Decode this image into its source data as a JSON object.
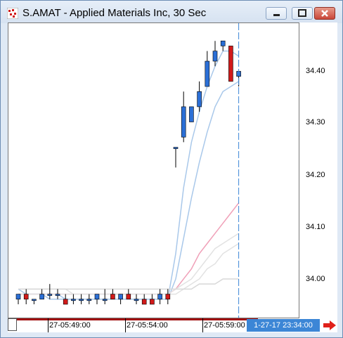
{
  "window": {
    "title": "S.AMAT - Applied Materials Inc, 30 Sec"
  },
  "price_axis": {
    "labels": [
      "34.40",
      "34.30",
      "34.20",
      "34.10",
      "34.00"
    ]
  },
  "time_axis": {
    "labels": [
      "27-05:49:00",
      "27-05:54:00",
      "27-05:59:00"
    ],
    "cursor_label": "1-27-17 23:34:00"
  },
  "colors": {
    "up": "#2b6fd6",
    "down": "#d11a1a",
    "cursor": "#3c86d6"
  },
  "chart_data": {
    "type": "candlestick",
    "y_range": [
      33.95,
      34.48
    ],
    "candles": [
      {
        "o": 33.96,
        "h": 33.97,
        "l": 33.95,
        "c": 33.97
      },
      {
        "o": 33.97,
        "h": 33.98,
        "l": 33.95,
        "c": 33.96
      },
      {
        "o": 33.96,
        "h": 33.96,
        "l": 33.95,
        "c": 33.96
      },
      {
        "o": 33.96,
        "h": 33.98,
        "l": 33.96,
        "c": 33.97
      },
      {
        "o": 33.97,
        "h": 33.99,
        "l": 33.96,
        "c": 33.97
      },
      {
        "o": 33.97,
        "h": 33.98,
        "l": 33.96,
        "c": 33.97
      },
      {
        "o": 33.96,
        "h": 33.97,
        "l": 33.95,
        "c": 33.95
      },
      {
        "o": 33.96,
        "h": 33.97,
        "l": 33.95,
        "c": 33.96
      },
      {
        "o": 33.96,
        "h": 33.97,
        "l": 33.95,
        "c": 33.96
      },
      {
        "o": 33.96,
        "h": 33.97,
        "l": 33.95,
        "c": 33.96
      },
      {
        "o": 33.96,
        "h": 33.97,
        "l": 33.95,
        "c": 33.97
      },
      {
        "o": 33.96,
        "h": 33.98,
        "l": 33.95,
        "c": 33.96
      },
      {
        "o": 33.97,
        "h": 33.98,
        "l": 33.96,
        "c": 33.96
      },
      {
        "o": 33.96,
        "h": 33.97,
        "l": 33.95,
        "c": 33.97
      },
      {
        "o": 33.97,
        "h": 33.98,
        "l": 33.96,
        "c": 33.96
      },
      {
        "o": 33.96,
        "h": 33.97,
        "l": 33.95,
        "c": 33.96
      },
      {
        "o": 33.96,
        "h": 33.97,
        "l": 33.95,
        "c": 33.95
      },
      {
        "o": 33.96,
        "h": 33.97,
        "l": 33.95,
        "c": 33.95
      },
      {
        "o": 33.96,
        "h": 33.98,
        "l": 33.95,
        "c": 33.97
      },
      {
        "o": 33.97,
        "h": 33.98,
        "l": 33.95,
        "c": 33.96
      },
      {
        "o": 34.26,
        "h": 34.26,
        "l": 34.22,
        "c": 34.26
      },
      {
        "o": 34.28,
        "h": 34.37,
        "l": 34.27,
        "c": 34.34
      },
      {
        "o": 34.31,
        "h": 34.34,
        "l": 34.31,
        "c": 34.34
      },
      {
        "o": 34.34,
        "h": 34.39,
        "l": 34.33,
        "c": 34.37
      },
      {
        "o": 34.38,
        "h": 34.45,
        "l": 34.38,
        "c": 34.43
      },
      {
        "o": 34.43,
        "h": 34.47,
        "l": 34.42,
        "c": 34.45
      },
      {
        "o": 34.46,
        "h": 34.47,
        "l": 34.45,
        "c": 34.47
      },
      {
        "o": 34.46,
        "h": 34.46,
        "l": 34.39,
        "c": 34.39
      },
      {
        "o": 34.4,
        "h": 34.41,
        "l": 34.38,
        "c": 34.41
      }
    ],
    "moving_averages": [
      {
        "color": "#a9c8ea",
        "values": [
          33.97,
          33.97,
          33.97,
          33.97,
          33.97,
          33.97,
          33.96,
          33.96,
          33.96,
          33.96,
          33.96,
          33.96,
          33.96,
          33.96,
          33.96,
          33.96,
          33.96,
          33.96,
          33.96,
          33.96,
          34.05,
          34.18,
          34.27,
          34.33,
          34.38,
          34.42,
          34.45,
          34.45,
          34.44
        ]
      },
      {
        "color": "#a9c8ea",
        "values": [
          33.98,
          33.97,
          33.97,
          33.97,
          33.96,
          33.96,
          33.96,
          33.96,
          33.96,
          33.96,
          33.96,
          33.96,
          33.96,
          33.96,
          33.96,
          33.96,
          33.96,
          33.96,
          33.96,
          33.96,
          34.0,
          34.08,
          34.16,
          34.23,
          34.29,
          34.34,
          34.37,
          34.38,
          34.39
        ]
      },
      {
        "color": "#f0a0b8",
        "values": [
          33.97,
          33.97,
          33.97,
          33.97,
          33.97,
          33.97,
          33.97,
          33.97,
          33.97,
          33.97,
          33.97,
          33.97,
          33.97,
          33.97,
          33.97,
          33.97,
          33.97,
          33.97,
          33.97,
          33.97,
          33.98,
          34.0,
          34.02,
          34.05,
          34.07,
          34.09,
          34.11,
          34.13,
          34.15
        ]
      },
      {
        "color": "#e2e2e2",
        "values": [
          33.97,
          33.97,
          33.97,
          33.97,
          33.97,
          33.97,
          33.97,
          33.97,
          33.97,
          33.97,
          33.97,
          33.97,
          33.97,
          33.97,
          33.97,
          33.97,
          33.97,
          33.97,
          33.97,
          33.97,
          33.98,
          33.99,
          34.0,
          34.02,
          34.04,
          34.06,
          34.07,
          34.08,
          34.09
        ]
      },
      {
        "color": "#e2e2e2",
        "values": [
          33.98,
          33.98,
          33.98,
          33.98,
          33.98,
          33.98,
          33.98,
          33.97,
          33.97,
          33.97,
          33.97,
          33.97,
          33.97,
          33.97,
          33.97,
          33.97,
          33.97,
          33.97,
          33.97,
          33.97,
          33.97,
          33.98,
          33.99,
          34.0,
          34.02,
          34.03,
          34.05,
          34.06,
          34.07
        ]
      },
      {
        "color": "#d8d8d8",
        "values": [
          33.98,
          33.98,
          33.98,
          33.98,
          33.98,
          33.98,
          33.98,
          33.98,
          33.98,
          33.98,
          33.98,
          33.98,
          33.98,
          33.98,
          33.98,
          33.98,
          33.98,
          33.98,
          33.98,
          33.98,
          33.98,
          33.98,
          33.98,
          33.99,
          33.99,
          33.99,
          34.0,
          34.0,
          34.0
        ]
      }
    ]
  }
}
